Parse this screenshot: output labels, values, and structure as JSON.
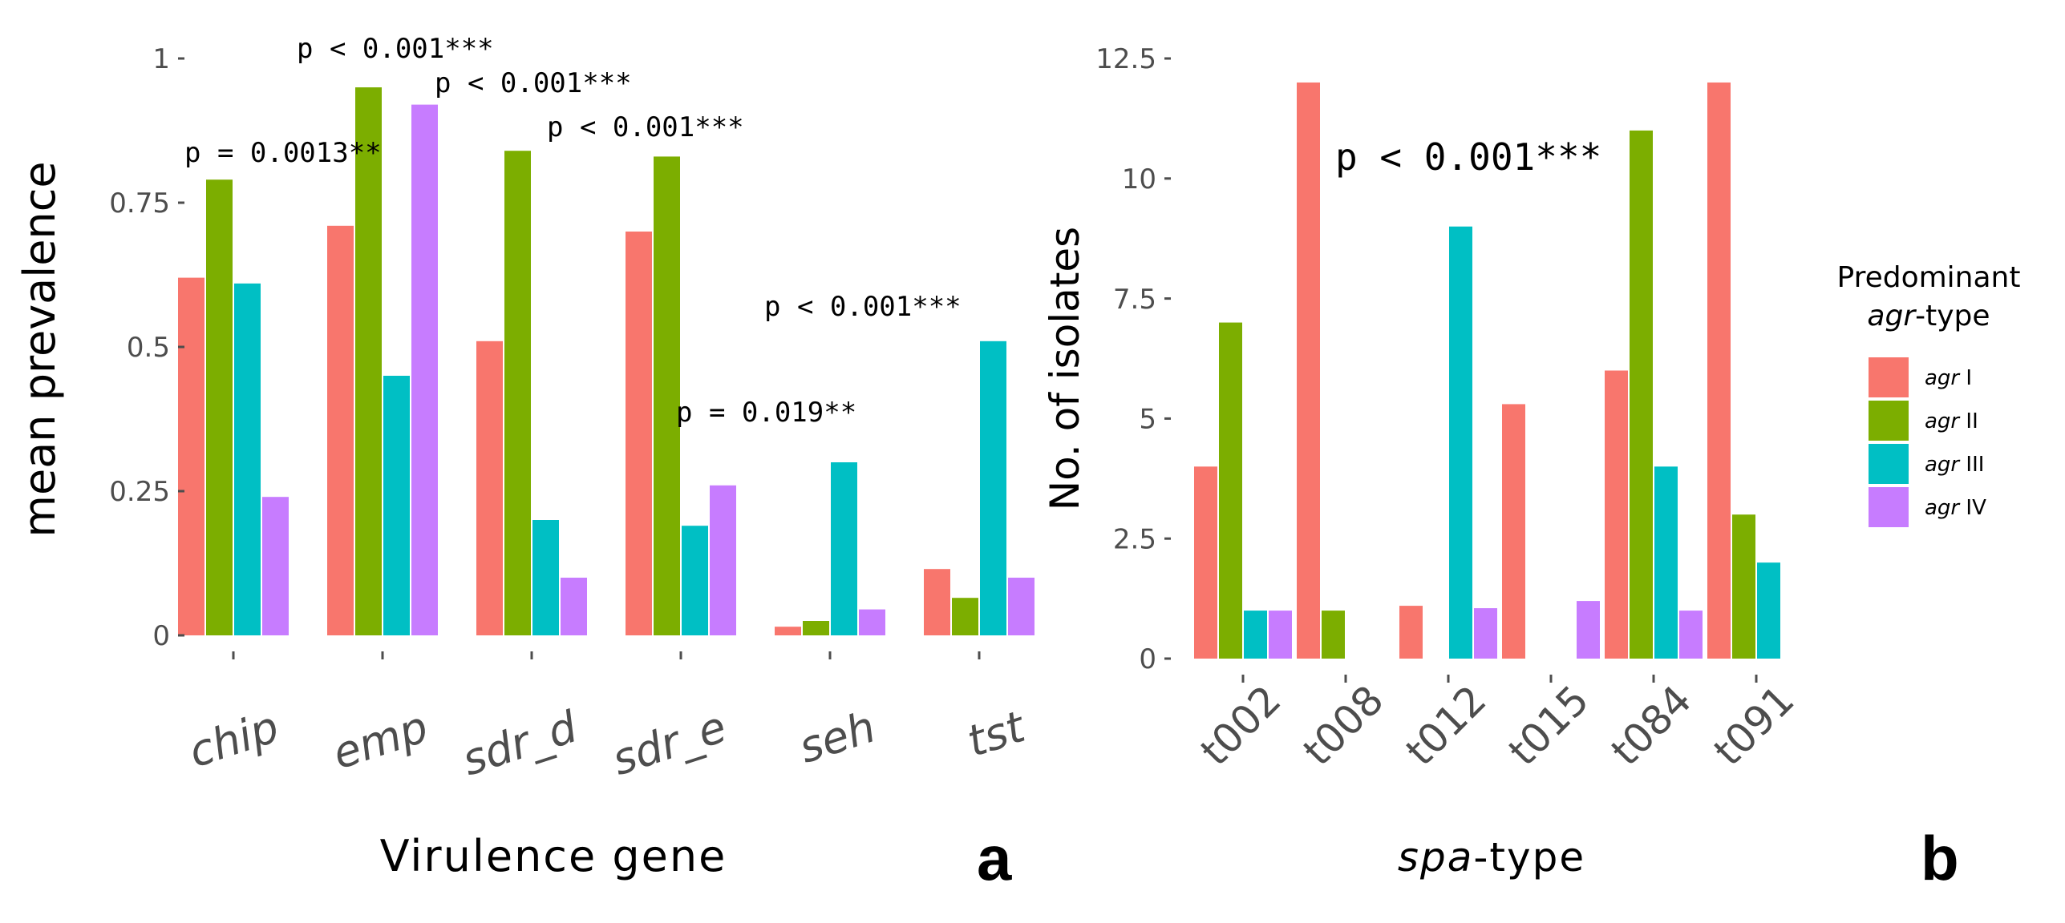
{
  "legend": {
    "title_line1": "Predominant",
    "title_line2_italic": "agr",
    "title_line2_rest": "-type",
    "items": [
      {
        "prefix": "agr",
        "suffix": "I",
        "color": "#F8766D"
      },
      {
        "prefix": "agr",
        "suffix": "II",
        "color": "#7CAE00"
      },
      {
        "prefix": "agr",
        "suffix": "III",
        "color": "#00BFC4"
      },
      {
        "prefix": "agr",
        "suffix": "IV",
        "color": "#C77CFF"
      }
    ]
  },
  "panels": {
    "a": {
      "letter": "a"
    },
    "b": {
      "letter": "b"
    }
  },
  "chart_data": [
    {
      "type": "bar",
      "panel": "a",
      "xlabel": "Virulence gene",
      "ylabel": "mean prevalence",
      "ylim": [
        0,
        1
      ],
      "yticks": [
        "0",
        "0.25",
        "0.5",
        "0.75",
        "1"
      ],
      "yticks_values": [
        0,
        0.25,
        0.5,
        0.75,
        1
      ],
      "categories": [
        "chip",
        "emp",
        "sdr_d",
        "sdr_e",
        "seh",
        "tst"
      ],
      "series": [
        {
          "name": "agr I",
          "values": [
            0.62,
            0.71,
            0.51,
            0.7,
            0.015,
            0.115
          ]
        },
        {
          "name": "agr II",
          "values": [
            0.79,
            0.95,
            0.84,
            0.83,
            0.025,
            0.065
          ]
        },
        {
          "name": "agr III",
          "values": [
            0.61,
            0.45,
            0.2,
            0.19,
            0.3,
            0.51
          ]
        },
        {
          "name": "agr IV",
          "values": [
            0.24,
            0.92,
            0.1,
            0.26,
            0.045,
            0.1
          ]
        }
      ],
      "annotations": [
        "p = 0.0013**",
        "p < 0.001***",
        "p < 0.001***",
        "p < 0.001***",
        "p = 0.019**",
        "p < 0.001***"
      ]
    },
    {
      "type": "bar",
      "panel": "b",
      "xlabel_italic": "spa",
      "xlabel_rest": "-type",
      "ylabel": "No. of isolates",
      "ylim": [
        0,
        12.5
      ],
      "yticks": [
        "0",
        "2.5",
        "5",
        "7.5",
        "10",
        "12.5"
      ],
      "yticks_values": [
        0,
        2.5,
        5,
        7.5,
        10,
        12.5
      ],
      "categories": [
        "t002",
        "t008",
        "t012",
        "t015",
        "t084",
        "t091"
      ],
      "series": [
        {
          "name": "agr I",
          "values": [
            4,
            12,
            1.1,
            5.3,
            6,
            12
          ]
        },
        {
          "name": "agr II",
          "values": [
            7,
            1,
            null,
            null,
            11,
            3
          ]
        },
        {
          "name": "agr III",
          "values": [
            1,
            null,
            9,
            null,
            4,
            2
          ]
        },
        {
          "name": "agr IV",
          "values": [
            1,
            null,
            1.05,
            1.2,
            1,
            null
          ]
        }
      ],
      "annotation": "p < 0.001***"
    }
  ]
}
